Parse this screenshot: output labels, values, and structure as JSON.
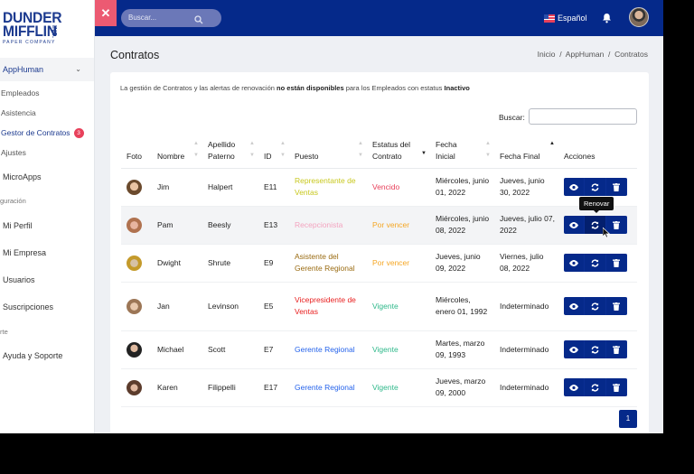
{
  "brand": {
    "line1": "DUNDER",
    "line2": "MIFFLIN",
    "inc": "INC.",
    "tagline": "PAPER COMPANY"
  },
  "sidebar": {
    "group": {
      "label": "AppHuman",
      "expanded": true
    },
    "sub_items": [
      {
        "label": "Empleados",
        "active": false
      },
      {
        "label": "Asistencia",
        "active": false
      },
      {
        "label": "Gestor de Contratos",
        "active": true,
        "badge": "3"
      },
      {
        "label": "Ajustes",
        "active": false
      }
    ],
    "microapps": "MicroApps",
    "section_config": "guración",
    "config_items": [
      "Mi Perfil",
      "Mi Empresa",
      "Usuarios",
      "Suscripciones"
    ],
    "section_support": "rte",
    "support_item": "Ayuda y Soporte"
  },
  "topbar": {
    "close": "✕",
    "search_placeholder": "Buscar...",
    "language": "Español",
    "colors": {
      "bar": "#05298a",
      "close": "#ec5a72"
    }
  },
  "page": {
    "title": "Contratos",
    "breadcrumb": "Inicio  /  AppHuman  /  Contratos",
    "notice_pre": "La gestión de Contratos y las alertas de renovación ",
    "notice_bold1": "no están disponibles",
    "notice_mid": " para los Empleados con estatus ",
    "notice_bold2": "Inactivo",
    "search_label": "Buscar:",
    "search_value": ""
  },
  "table": {
    "headers": {
      "foto": "Foto",
      "nombre": "Nombre",
      "apellido": "Apellido Paterno",
      "id": "ID",
      "puesto": "Puesto",
      "estatus": "Estatus del Contrato",
      "inicial": "Fecha Inicial",
      "final": "Fecha Final",
      "acciones": "Acciones"
    },
    "rows": [
      {
        "nombre": "Jim",
        "apellido": "Halpert",
        "id": "E11",
        "puesto": "Representante de Ventas",
        "puesto_color": "#c8c81e",
        "estatus": "Vencido",
        "estatus_color": "#e8415b",
        "inicial": "Miércoles, junio 01, 2022",
        "final": "Jueves, junio 30, 2022"
      },
      {
        "nombre": "Pam",
        "apellido": "Beesly",
        "id": "E13",
        "puesto": "Recepcionista",
        "puesto_color": "#f3a3bf",
        "estatus": "Por vencer",
        "estatus_color": "#f5a623",
        "inicial": "Miércoles, junio 08, 2022",
        "final": "Jueves, julio 07, 2022"
      },
      {
        "nombre": "Dwight",
        "apellido": "Shrute",
        "id": "E9",
        "puesto": "Asistente del Gerente Regional",
        "puesto_color": "#9a6b12",
        "estatus": "Por vencer",
        "estatus_color": "#f5a623",
        "inicial": "Jueves, junio 09, 2022",
        "final": "Viernes, julio 08, 2022"
      },
      {
        "nombre": "Jan",
        "apellido": "Levinson",
        "id": "E5",
        "puesto": "Vicepresidente de Ventas",
        "puesto_color": "#e82020",
        "estatus": "Vigente",
        "estatus_color": "#2eb88a",
        "inicial": "Miércoles, enero 01, 1992",
        "final": "Indeterminado"
      },
      {
        "nombre": "Michael",
        "apellido": "Scott",
        "id": "E7",
        "puesto": "Gerente Regional",
        "puesto_color": "#2563eb",
        "estatus": "Vigente",
        "estatus_color": "#2eb88a",
        "inicial": "Martes, marzo 09, 1993",
        "final": "Indeterminado"
      },
      {
        "nombre": "Karen",
        "apellido": "Filippelli",
        "id": "E17",
        "puesto": "Gerente Regional",
        "puesto_color": "#2563eb",
        "estatus": "Vigente",
        "estatus_color": "#2eb88a",
        "inicial": "Jueves, marzo 09, 2000",
        "final": "Indeterminado"
      }
    ],
    "tooltip": "Renovar",
    "pagination": {
      "current": "1"
    }
  }
}
